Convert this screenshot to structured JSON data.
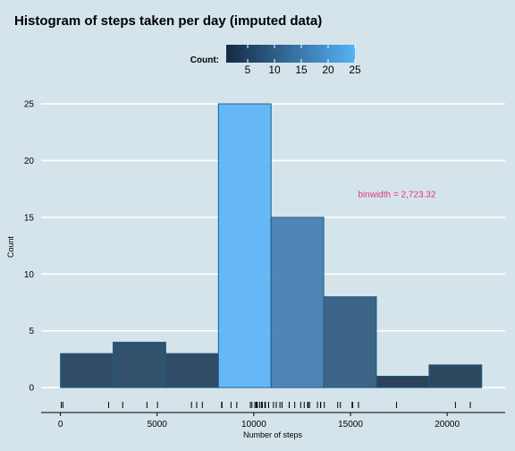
{
  "chart_data": {
    "type": "bar",
    "title": "Histogram of steps taken per day (imputed data)",
    "xlabel": "Number of steps",
    "ylabel": "Count",
    "bins": [
      {
        "start": 0,
        "end": 2723.32,
        "count": 3
      },
      {
        "start": 2723.32,
        "end": 5446.64,
        "count": 4
      },
      {
        "start": 5446.64,
        "end": 8169.96,
        "count": 3
      },
      {
        "start": 8169.96,
        "end": 10893.28,
        "count": 25
      },
      {
        "start": 10893.28,
        "end": 13616.6,
        "count": 15
      },
      {
        "start": 13616.6,
        "end": 16339.92,
        "count": 8
      },
      {
        "start": 16339.92,
        "end": 19063.24,
        "count": 1
      },
      {
        "start": 19063.24,
        "end": 21786.56,
        "count": 2
      }
    ],
    "xlim": [
      -1000,
      23000
    ],
    "ylim": [
      -1.8,
      26.5
    ],
    "x_ticks": [
      0,
      5000,
      10000,
      15000,
      20000
    ],
    "x_tick_labels": [
      "0",
      "5000",
      "10000",
      "15000",
      "20000"
    ],
    "y_ticks": [
      0,
      5,
      10,
      15,
      20,
      25
    ],
    "y_tick_labels": [
      "0",
      "5",
      "10",
      "15",
      "20",
      "25"
    ],
    "rug": [
      41,
      126,
      2492,
      3219,
      4472,
      5018,
      6778,
      7047,
      7336,
      8334,
      8355,
      8821,
      9119,
      9819,
      9900,
      10056,
      10119,
      10139,
      10183,
      10304,
      10395,
      10439,
      10571,
      10600,
      10765,
      10766,
      11015,
      11162,
      11352,
      11458,
      11829,
      11834,
      12116,
      12426,
      12608,
      12787,
      12811,
      12883,
      13294,
      13452,
      13460,
      13646,
      14339,
      14478,
      15084,
      15098,
      15110,
      15414,
      17382,
      20427,
      21194
    ],
    "legend": {
      "title": "Count:",
      "ticks": [
        5,
        10,
        15,
        20,
        25
      ],
      "tick_labels": [
        "5",
        "10",
        "15",
        "20",
        "25"
      ],
      "range": [
        1,
        25
      ],
      "color_low": "#132b43",
      "color_high": "#56b1f7"
    },
    "annotation": {
      "text": "binwidth = 2,723.32",
      "x": 17400,
      "y": 17,
      "color": "#e0347f"
    },
    "grid": "horizontal",
    "colors": {
      "background": "#d5e4eb",
      "grid": "#ffffff",
      "bar_outline": "#1a5f86",
      "axis": "#000000"
    }
  }
}
